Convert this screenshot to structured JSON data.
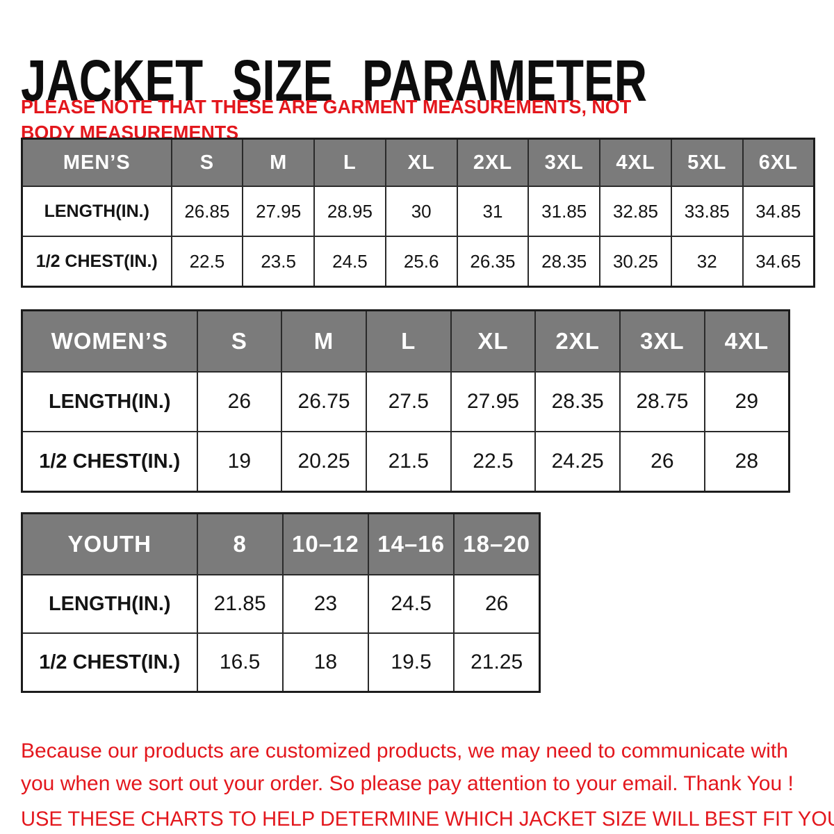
{
  "page": {
    "title": "JACKET SIZE PARAMETER",
    "note": "PLEASE NOTE THAT THESE ARE GARMENT MEASUREMENTS, NOT BODY MEASUREMENTS",
    "footer_line1": "Because our products are customized products, we may need to communicate with you when we sort out your order. So please pay attention to your email. Thank You !",
    "footer_line2": "USE THESE CHARTS TO HELP DETERMINE WHICH JACKET SIZE WILL BEST FIT YOU."
  },
  "colors": {
    "title_black": "#0d0d0d",
    "accent_red": "#e3171d",
    "header_gray": "#7b7b7b",
    "border_black": "#1c1c1c"
  },
  "tables": [
    {
      "name": "mens",
      "header": [
        "MEN’S",
        "S",
        "M",
        "L",
        "XL",
        "2XL",
        "3XL",
        "4XL",
        "5XL",
        "6XL"
      ],
      "rows": [
        [
          "LENGTH(IN.)",
          "26.85",
          "27.95",
          "28.95",
          "30",
          "31",
          "31.85",
          "32.85",
          "33.85",
          "34.85"
        ],
        [
          "1/2 CHEST(IN.)",
          "22.5",
          "23.5",
          "24.5",
          "25.6",
          "26.35",
          "28.35",
          "30.25",
          "32",
          "34.65"
        ]
      ]
    },
    {
      "name": "womens",
      "header": [
        "WOMEN’S",
        "S",
        "M",
        "L",
        "XL",
        "2XL",
        "3XL",
        "4XL"
      ],
      "rows": [
        [
          "LENGTH(IN.)",
          "26",
          "26.75",
          "27.5",
          "27.95",
          "28.35",
          "28.75",
          "29"
        ],
        [
          "1/2 CHEST(IN.)",
          "19",
          "20.25",
          "21.5",
          "22.5",
          "24.25",
          "26",
          "28"
        ]
      ]
    },
    {
      "name": "youth",
      "header": [
        "YOUTH",
        "8",
        "10–12",
        "14–16",
        "18–20"
      ],
      "rows": [
        [
          "LENGTH(IN.)",
          "21.85",
          "23",
          "24.5",
          "26"
        ],
        [
          "1/2 CHEST(IN.)",
          "16.5",
          "18",
          "19.5",
          "21.25"
        ]
      ]
    }
  ]
}
